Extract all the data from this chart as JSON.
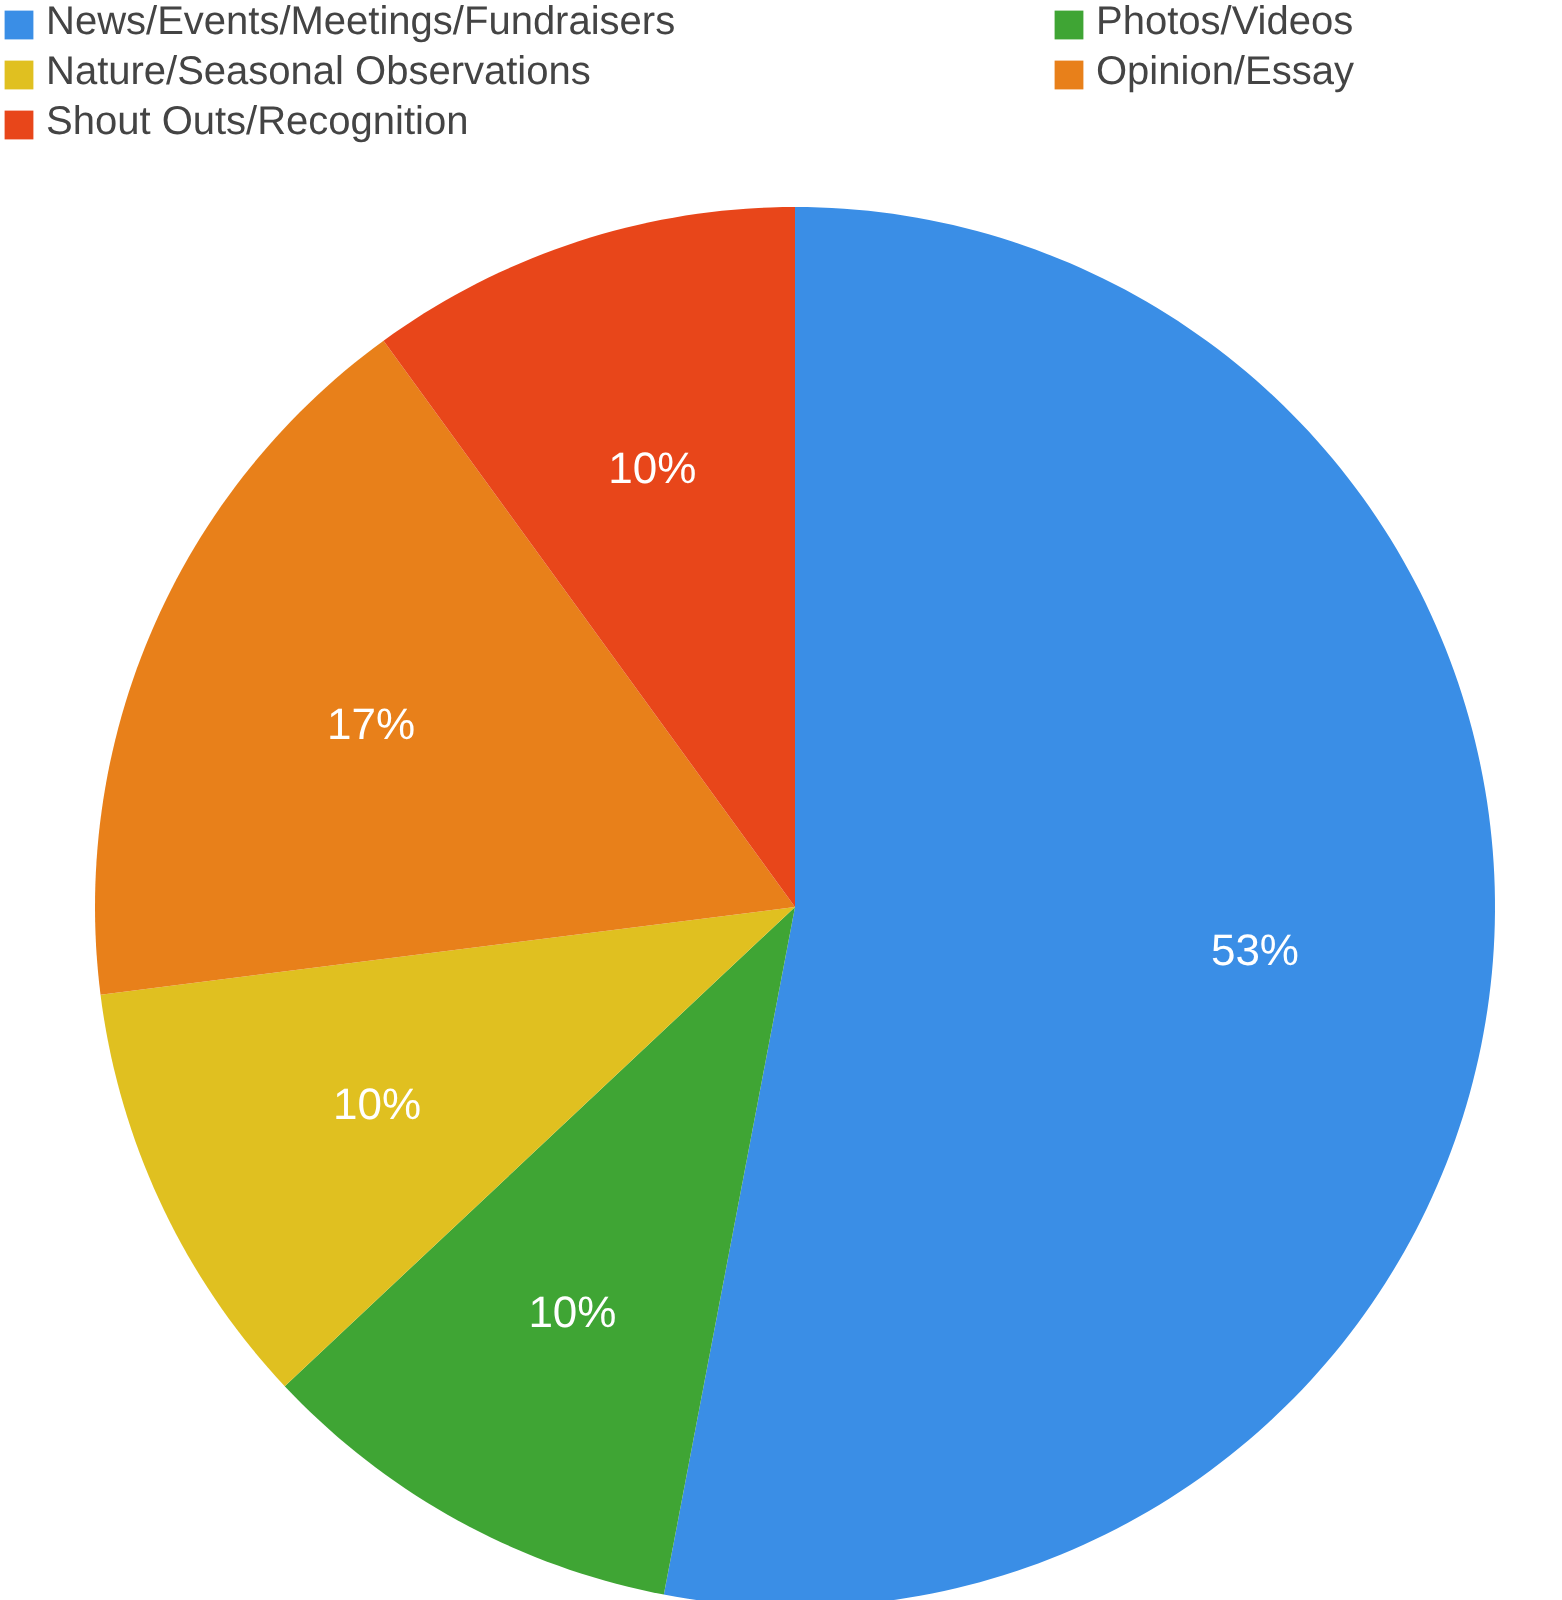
{
  "chart_data": {
    "type": "pie",
    "categories": [
      "News/Events/Meetings/Fundraisers",
      "Photos/Videos",
      "Nature/Seasonal Observations",
      "Opinion/Essay",
      "Shout Outs/Recognition"
    ],
    "values": [
      53,
      10,
      10,
      17,
      10
    ],
    "colors": [
      "#3a8ee6",
      "#3fa534",
      "#e0c020",
      "#e8801a",
      "#e8461a"
    ],
    "value_labels": [
      "53%",
      "10%",
      "10%",
      "17%",
      "10%"
    ],
    "legend": "top"
  }
}
